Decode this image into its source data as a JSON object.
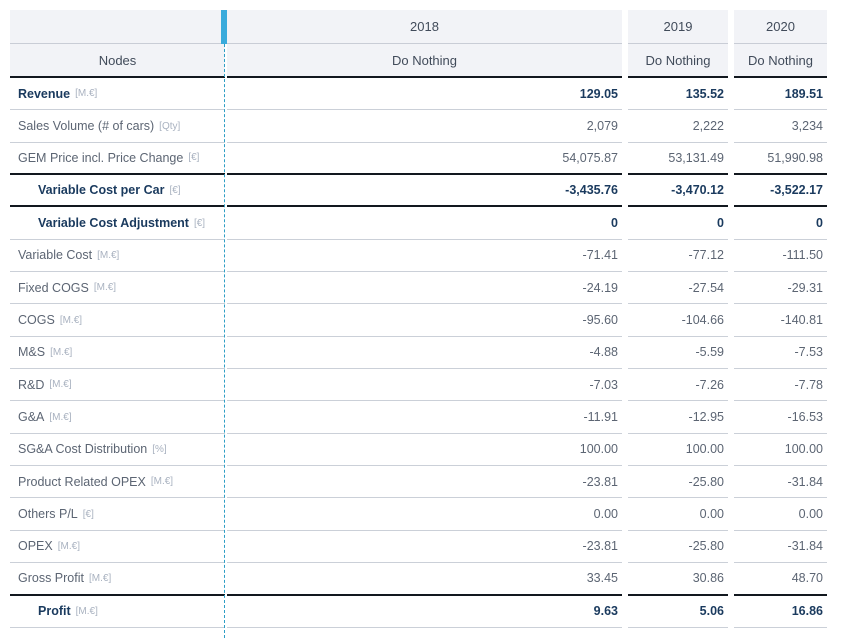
{
  "accent": {
    "bar_color": "#3aabdc",
    "divider_color": "#2e9ec5",
    "header_bg": "#f2f3f7",
    "dark_border": "#12181f",
    "light_border": "#cbd0d8",
    "bold_text": "#1a3a5e",
    "regular_text": "#5c6573",
    "unit_text": "#a9b2c0"
  },
  "header": {
    "nodes_label": "Nodes",
    "years": [
      "2018",
      "2019",
      "2020"
    ],
    "scenario_label": "Do Nothing"
  },
  "table": {
    "rows": [
      {
        "label": "Revenue",
        "unit": "[M.€]",
        "bold": true,
        "indent": false,
        "border": "light",
        "values": [
          "129.05",
          "135.52",
          "189.51"
        ]
      },
      {
        "label": "Sales Volume (# of cars)",
        "unit": "[Qty]",
        "bold": false,
        "indent": false,
        "border": "light",
        "values": [
          "2,079",
          "2,222",
          "3,234"
        ]
      },
      {
        "label": "GEM Price incl. Price Change",
        "unit": "[€]",
        "bold": false,
        "indent": false,
        "border": "dark",
        "values": [
          "54,075.87",
          "53,131.49",
          "51,990.98"
        ]
      },
      {
        "label": "Variable Cost per Car",
        "unit": "[€]",
        "bold": true,
        "indent": true,
        "border": "dark",
        "values": [
          "-3,435.76",
          "-3,470.12",
          "-3,522.17"
        ]
      },
      {
        "label": "Variable Cost Adjustment",
        "unit": "[€]",
        "bold": true,
        "indent": true,
        "border": "light",
        "values": [
          "0",
          "0",
          "0"
        ]
      },
      {
        "label": "Variable Cost",
        "unit": "[M.€]",
        "bold": false,
        "indent": false,
        "border": "light",
        "values": [
          "-71.41",
          "-77.12",
          "-111.50"
        ]
      },
      {
        "label": "Fixed COGS",
        "unit": "[M.€]",
        "bold": false,
        "indent": false,
        "border": "light",
        "values": [
          "-24.19",
          "-27.54",
          "-29.31"
        ]
      },
      {
        "label": "COGS",
        "unit": "[M.€]",
        "bold": false,
        "indent": false,
        "border": "light",
        "values": [
          "-95.60",
          "-104.66",
          "-140.81"
        ]
      },
      {
        "label": "M&S",
        "unit": "[M.€]",
        "bold": false,
        "indent": false,
        "border": "light",
        "values": [
          "-4.88",
          "-5.59",
          "-7.53"
        ]
      },
      {
        "label": "R&D",
        "unit": "[M.€]",
        "bold": false,
        "indent": false,
        "border": "light",
        "values": [
          "-7.03",
          "-7.26",
          "-7.78"
        ]
      },
      {
        "label": "G&A",
        "unit": "[M.€]",
        "bold": false,
        "indent": false,
        "border": "light",
        "values": [
          "-11.91",
          "-12.95",
          "-16.53"
        ]
      },
      {
        "label": "SG&A Cost Distribution",
        "unit": "[%]",
        "bold": false,
        "indent": false,
        "border": "light",
        "values": [
          "100.00",
          "100.00",
          "100.00"
        ]
      },
      {
        "label": "Product Related OPEX",
        "unit": "[M.€]",
        "bold": false,
        "indent": false,
        "border": "light",
        "values": [
          "-23.81",
          "-25.80",
          "-31.84"
        ]
      },
      {
        "label": "Others P/L",
        "unit": "[€]",
        "bold": false,
        "indent": false,
        "border": "light",
        "values": [
          "0.00",
          "0.00",
          "0.00"
        ]
      },
      {
        "label": "OPEX",
        "unit": "[M.€]",
        "bold": false,
        "indent": false,
        "border": "light",
        "values": [
          "-23.81",
          "-25.80",
          "-31.84"
        ]
      },
      {
        "label": "Gross Profit",
        "unit": "[M.€]",
        "bold": false,
        "indent": false,
        "border": "dark",
        "values": [
          "33.45",
          "30.86",
          "48.70"
        ]
      },
      {
        "label": "Profit",
        "unit": "[M.€]",
        "bold": true,
        "indent": true,
        "border": "light",
        "values": [
          "9.63",
          "5.06",
          "16.86"
        ]
      }
    ]
  }
}
